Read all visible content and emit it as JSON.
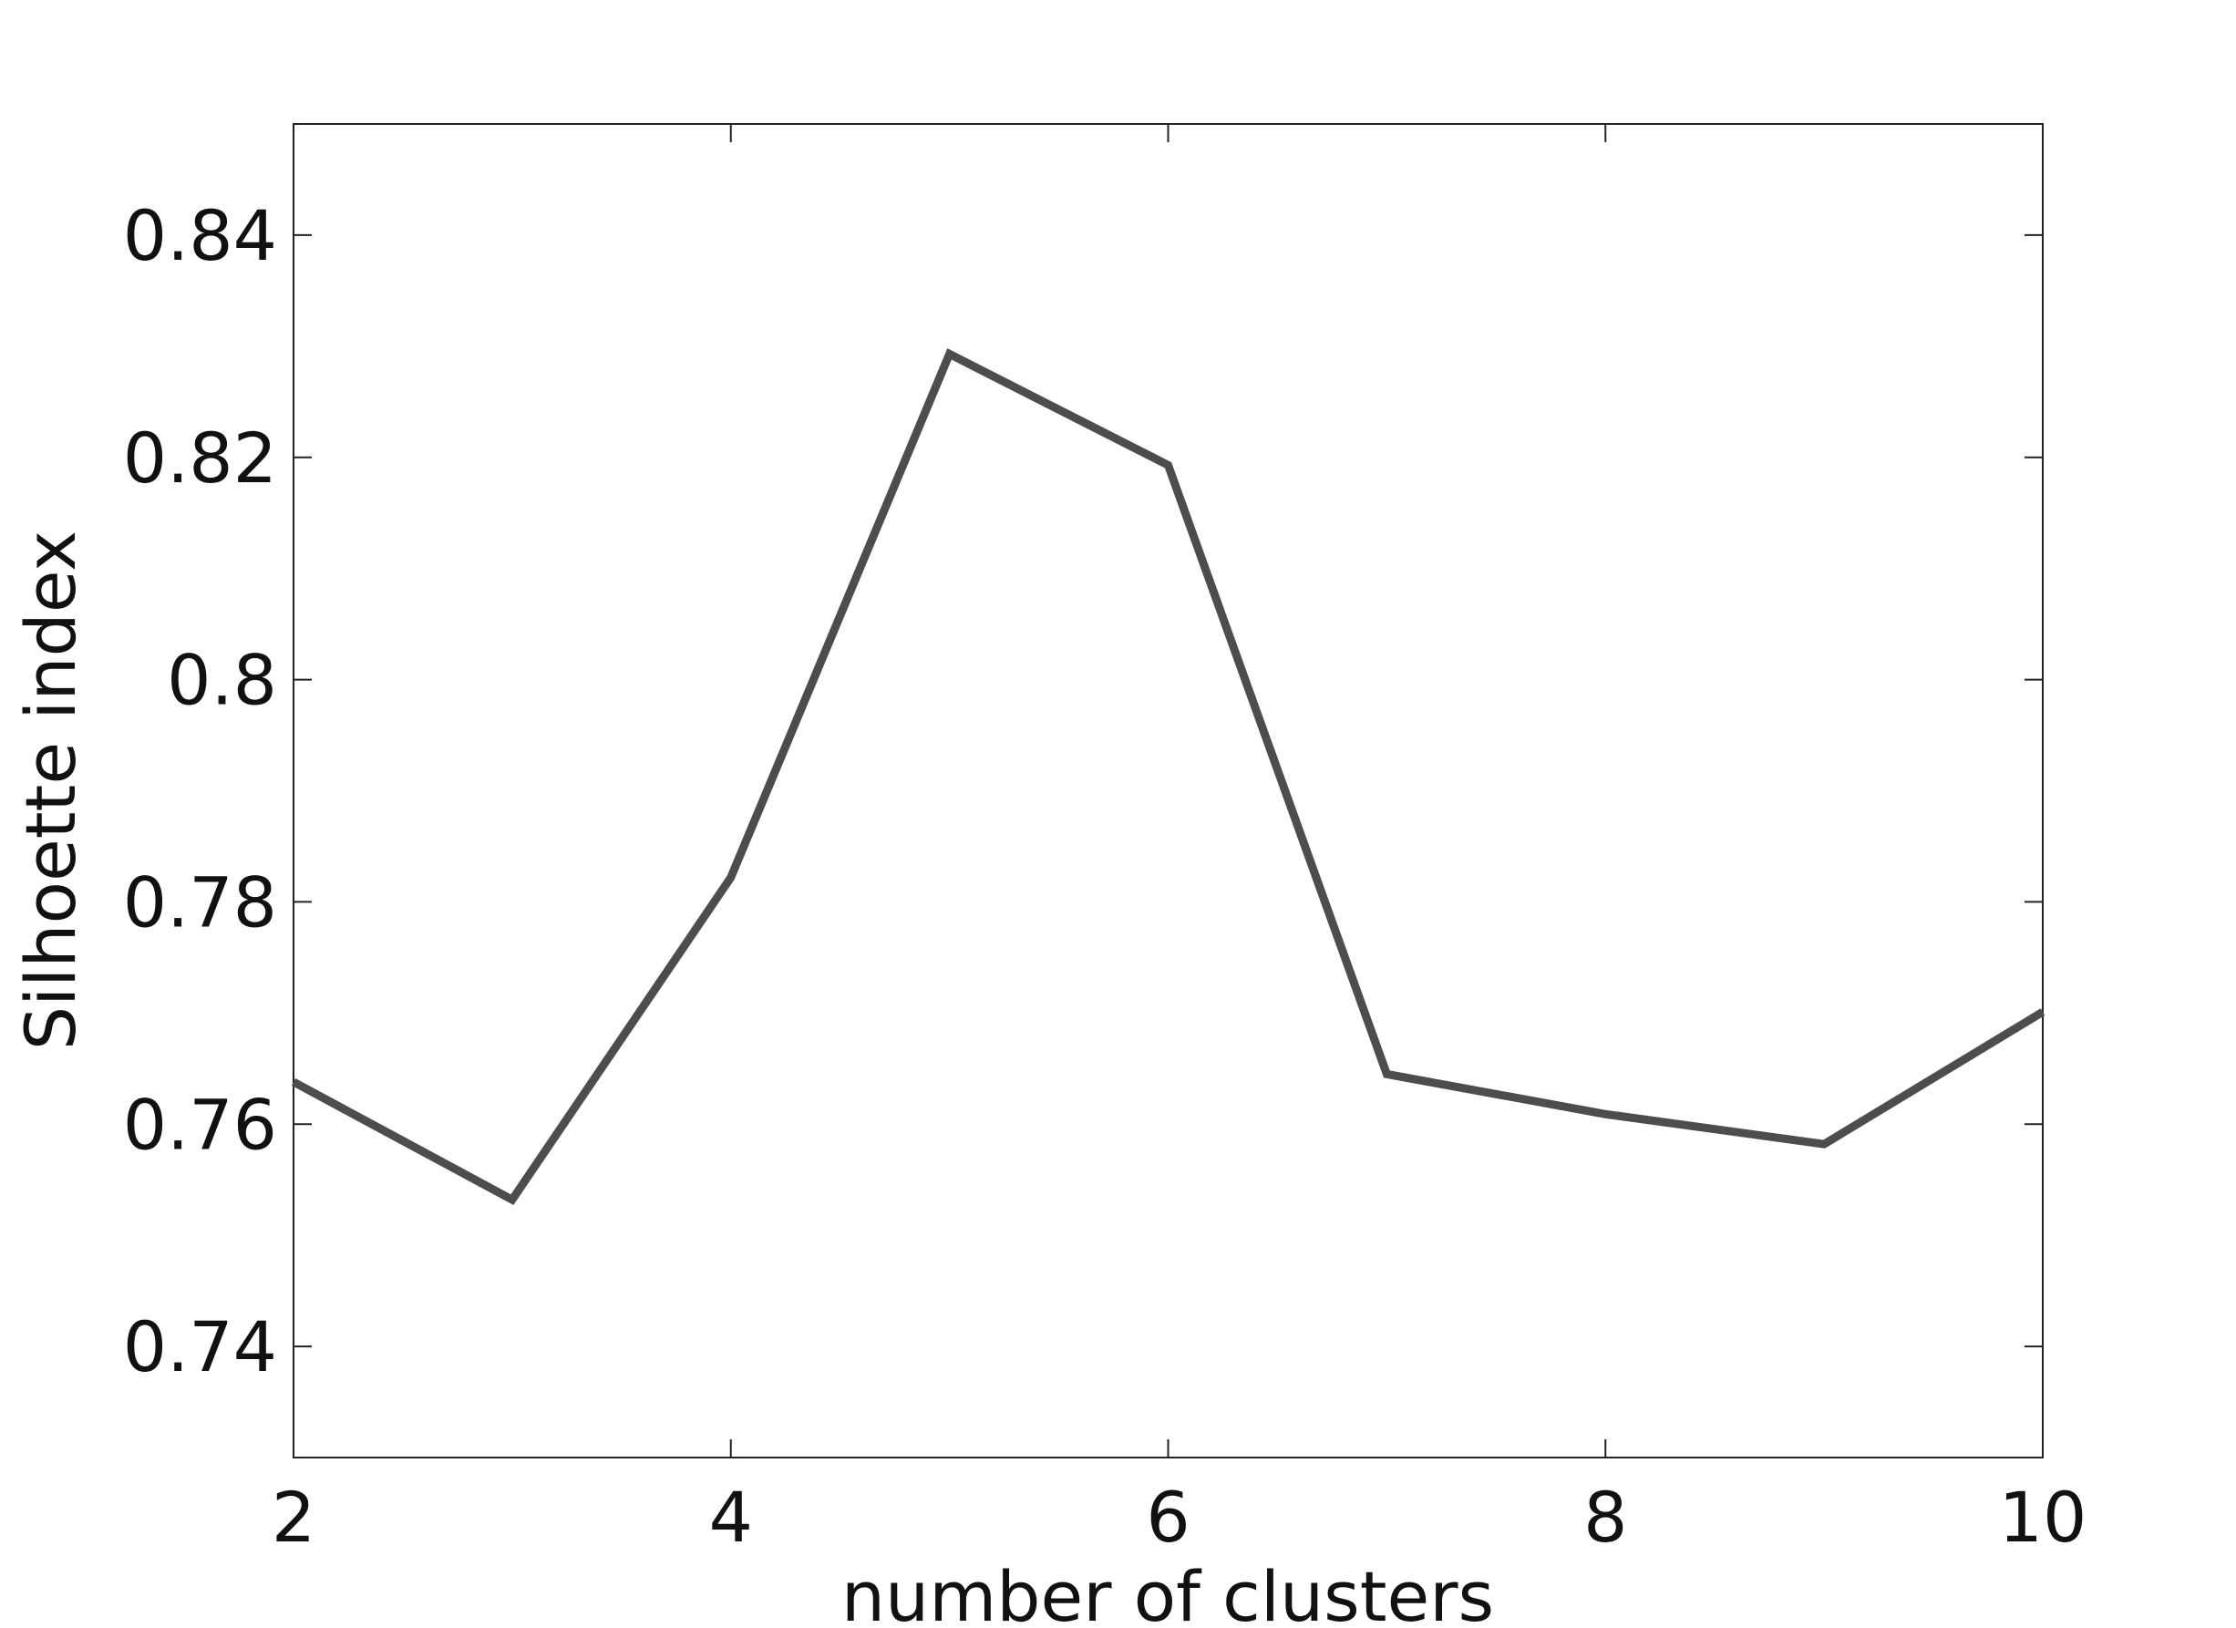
{
  "chart_data": {
    "type": "line",
    "xlabel": "number of clusters",
    "ylabel": "Silhoette index",
    "x": [
      2,
      3,
      4,
      5,
      6,
      7,
      8,
      9,
      10
    ],
    "series": [
      {
        "color": "#4d4d4d",
        "values": [
          0.7638,
          0.7532,
          0.7822,
          0.8293,
          0.8193,
          0.7645,
          0.7609,
          0.7582,
          0.7701
        ]
      }
    ],
    "xlim": [
      2,
      10
    ],
    "xticks": [
      2,
      4,
      6,
      8,
      10
    ],
    "ylim": [
      0.73,
      0.85
    ],
    "yticks": [
      0.74,
      0.76,
      0.78,
      0.8,
      0.82,
      0.84
    ]
  }
}
